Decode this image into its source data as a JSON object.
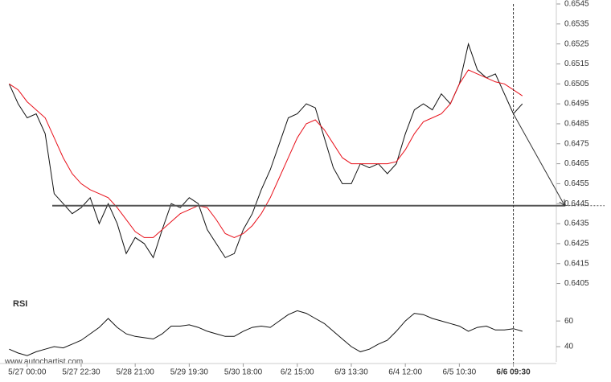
{
  "chart_data": [
    {
      "type": "line",
      "x": [
        0,
        1,
        2,
        3,
        4,
        5,
        6,
        7,
        8,
        9,
        10,
        11,
        12,
        13,
        14,
        15,
        16,
        17,
        18,
        19,
        20,
        21,
        22,
        23,
        24,
        25,
        26,
        27,
        28,
        29,
        30,
        31,
        32,
        33,
        34,
        35,
        36,
        37,
        38,
        39,
        40,
        41,
        42,
        43,
        44,
        45,
        46,
        47,
        48,
        49,
        50,
        51,
        52,
        53,
        54,
        55,
        56,
        57
      ],
      "series": [
        {
          "color": "#111111",
          "values": [
            0.6505,
            0.6495,
            0.6488,
            0.649,
            0.648,
            0.645,
            0.6445,
            0.644,
            0.6443,
            0.6448,
            0.6435,
            0.6445,
            0.6435,
            0.642,
            0.6428,
            0.6425,
            0.6418,
            0.6432,
            0.6445,
            0.6443,
            0.6448,
            0.6445,
            0.6432,
            0.6425,
            0.6418,
            0.642,
            0.6432,
            0.644,
            0.6452,
            0.6462,
            0.6475,
            0.6488,
            0.649,
            0.6495,
            0.6493,
            0.6478,
            0.6463,
            0.6455,
            0.6455,
            0.6465,
            0.6463,
            0.6465,
            0.646,
            0.6465,
            0.648,
            0.6492,
            0.6495,
            0.6492,
            0.65,
            0.6495,
            0.6505,
            0.6525,
            0.6512,
            0.6508,
            0.651,
            0.65,
            0.649,
            0.6495
          ]
        },
        {
          "color": "#e8101a",
          "values": [
            0.6505,
            0.6502,
            0.6496,
            0.6492,
            0.6488,
            0.6478,
            0.6468,
            0.646,
            0.6455,
            0.6452,
            0.645,
            0.6448,
            0.6443,
            0.6437,
            0.6431,
            0.6428,
            0.6428,
            0.6432,
            0.6436,
            0.644,
            0.6442,
            0.6444,
            0.6443,
            0.6437,
            0.643,
            0.6428,
            0.643,
            0.6434,
            0.644,
            0.6448,
            0.6458,
            0.6468,
            0.6478,
            0.6485,
            0.6487,
            0.6482,
            0.6475,
            0.6468,
            0.6465,
            0.6465,
            0.6465,
            0.6465,
            0.6465,
            0.6466,
            0.6472,
            0.648,
            0.6486,
            0.6488,
            0.649,
            0.6495,
            0.6505,
            0.6512,
            0.651,
            0.6508,
            0.6506,
            0.6505,
            0.6502,
            0.6499
          ]
        }
      ],
      "xlim": [
        -0.3,
        57.2
      ],
      "ylim": [
        0.6402,
        0.6547
      ],
      "yticks": [
        0.6405,
        0.6415,
        0.6425,
        0.6435,
        0.6445,
        0.6455,
        0.6465,
        0.6475,
        0.6485,
        0.6495,
        0.6505,
        0.6515,
        0.6525,
        0.6535,
        0.6545
      ],
      "support_level": 0.6444,
      "forecast": {
        "x": [
          56,
          61.7
        ],
        "values": [
          0.649,
          0.6444
        ]
      },
      "current_x": 56
    },
    {
      "type": "line",
      "title": "RSI",
      "x": [
        0,
        1,
        2,
        3,
        4,
        5,
        6,
        7,
        8,
        9,
        10,
        11,
        12,
        13,
        14,
        15,
        16,
        17,
        18,
        19,
        20,
        21,
        22,
        23,
        24,
        25,
        26,
        27,
        28,
        29,
        30,
        31,
        32,
        33,
        34,
        35,
        36,
        37,
        38,
        39,
        40,
        41,
        42,
        43,
        44,
        45,
        46,
        47,
        48,
        49,
        50,
        51,
        52,
        53,
        54,
        55,
        56,
        57
      ],
      "series": [
        {
          "color": "#111111",
          "values": [
            38,
            35,
            33,
            36,
            38,
            40,
            39,
            42,
            45,
            50,
            55,
            62,
            55,
            50,
            48,
            47,
            46,
            50,
            56,
            56,
            57,
            55,
            52,
            50,
            48,
            48,
            52,
            55,
            56,
            55,
            60,
            65,
            68,
            66,
            62,
            58,
            52,
            46,
            40,
            36,
            38,
            42,
            45,
            52,
            60,
            66,
            65,
            62,
            60,
            58,
            56,
            52,
            55,
            56,
            53,
            53,
            54,
            52
          ]
        }
      ],
      "xlim": [
        -0.3,
        57.2
      ],
      "ylim": [
        30,
        72
      ],
      "yticks": [
        40,
        60
      ],
      "xticks": [
        {
          "value": 2,
          "label": "5/27 00:00"
        },
        {
          "value": 8,
          "label": "5/27 22:30"
        },
        {
          "value": 14,
          "label": "5/28 21:00"
        },
        {
          "value": 20,
          "label": "5/29 19:30"
        },
        {
          "value": 26,
          "label": "5/30 18:00"
        },
        {
          "value": 32,
          "label": "6/2 15:00"
        },
        {
          "value": 38,
          "label": "6/3 13:30"
        },
        {
          "value": 44,
          "label": "6/4 12:00"
        },
        {
          "value": 50,
          "label": "6/5 10:30"
        },
        {
          "value": 56,
          "label": "6/6 09:30"
        }
      ],
      "footer": "www.autochartist.com"
    }
  ]
}
